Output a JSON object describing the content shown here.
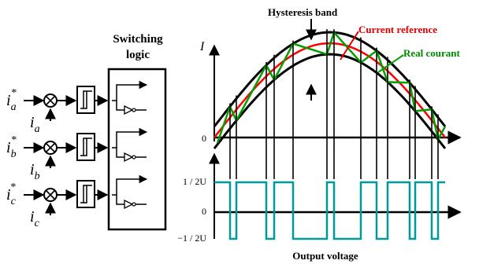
{
  "controller": {
    "title_line1": "Switching",
    "title_line2": "logic",
    "phases": [
      {
        "ref": "i",
        "ref_sub": "a",
        "ref_sup": "*",
        "fb": "i",
        "fb_sub": "a"
      },
      {
        "ref": "i",
        "ref_sub": "b",
        "ref_sup": "*",
        "fb": "i",
        "fb_sub": "b"
      },
      {
        "ref": "i",
        "ref_sub": "c",
        "ref_sup": "*",
        "fb": "i",
        "fb_sub": "c"
      }
    ]
  },
  "waveforms": {
    "hysteresis_band_label": "Hysteresis band",
    "current_reference_label": "Current  reference",
    "real_current_label": "Real courant",
    "current_axis_label": "I",
    "zero_label_top": "0",
    "voltage_high_label": "1 / 2U",
    "voltage_zero_label": "0",
    "voltage_low_label": "−1 / 2U",
    "output_voltage_label": "Output voltage"
  },
  "colors": {
    "reference": "#ff0000",
    "real_current": "#00a000",
    "band": "#000000",
    "voltage": "#00999a"
  }
}
